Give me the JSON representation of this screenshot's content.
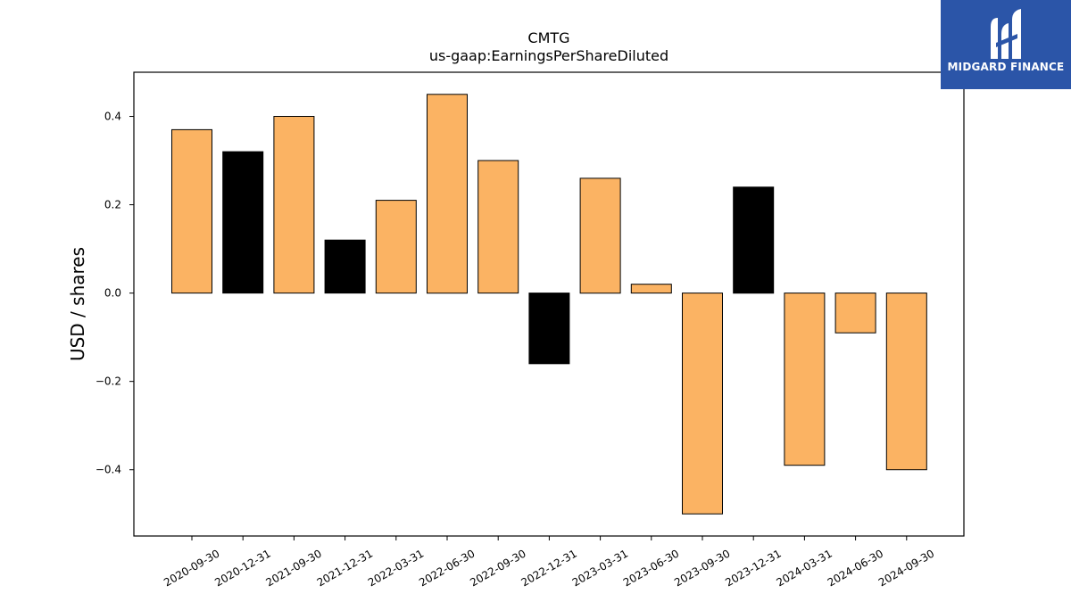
{
  "brand": {
    "name": "MIDGARD FINANCE",
    "bg_color": "#2b55a8",
    "logo_icon": "midgard-m-logo-icon"
  },
  "chart_data": {
    "type": "bar",
    "title": "CMTG",
    "subtitle": "us-gaap:EarningsPerShareDiluted",
    "xlabel": "",
    "ylabel": "USD / shares",
    "ylim": [
      -0.55,
      0.5
    ],
    "yticks": [
      -0.4,
      -0.2,
      0.0,
      0.2,
      0.4
    ],
    "ytick_labels": [
      "−0.4",
      "−0.2",
      "0.0",
      "0.2",
      "0.4"
    ],
    "grid": false,
    "colors": {
      "quarterly": "#fbb363",
      "annual": "#000000",
      "edge": "#000000"
    },
    "categories": [
      "2020-09-30",
      "2020-12-31",
      "2021-09-30",
      "2021-12-31",
      "2022-03-31",
      "2022-06-30",
      "2022-09-30",
      "2022-12-31",
      "2023-03-31",
      "2023-06-30",
      "2023-09-30",
      "2023-12-31",
      "2024-03-31",
      "2024-06-30",
      "2024-09-30"
    ],
    "values": [
      0.37,
      0.32,
      0.4,
      0.12,
      0.21,
      0.45,
      0.3,
      -0.16,
      0.26,
      0.02,
      -0.5,
      0.24,
      -0.39,
      -0.09,
      -0.4
    ],
    "bar_colors": [
      "#fbb363",
      "#000000",
      "#fbb363",
      "#000000",
      "#fbb363",
      "#fbb363",
      "#fbb363",
      "#000000",
      "#fbb363",
      "#fbb363",
      "#fbb363",
      "#000000",
      "#fbb363",
      "#fbb363",
      "#fbb363"
    ]
  }
}
